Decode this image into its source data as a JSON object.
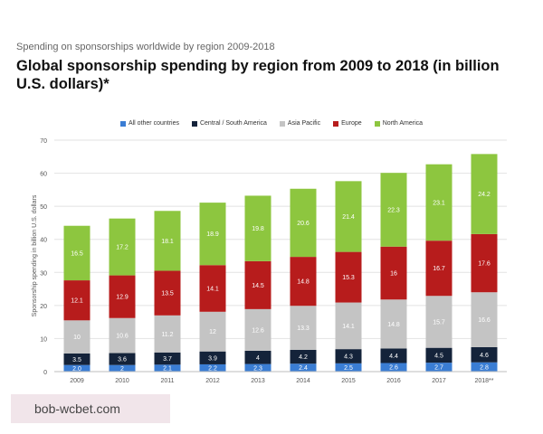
{
  "header": {
    "subtitle": "Spending on sponsorships worldwide by region 2009-2018",
    "title": "Global sponsorship spending by region from 2009 to 2018 (in billion U.S. dollars)*"
  },
  "watermark": {
    "text": "bob-wcbet.com"
  },
  "chart_data": {
    "type": "bar",
    "stacked": true,
    "title": "",
    "xlabel": "",
    "ylabel": "Sponsorship spending in billion U.S. dollars",
    "ylim": [
      0,
      70
    ],
    "yticks": [
      0,
      10,
      20,
      30,
      40,
      50,
      60,
      70
    ],
    "grid": true,
    "legend_position": "top-center",
    "categories": [
      "2009",
      "2010",
      "2011",
      "2012",
      "2013",
      "2014",
      "2015",
      "2016",
      "2017",
      "2018**"
    ],
    "series": [
      {
        "name": "All other countries",
        "color": "#3a7dd4",
        "values": [
          2.0,
          2.0,
          2.1,
          2.2,
          2.3,
          2.4,
          2.5,
          2.6,
          2.7,
          2.8
        ],
        "labels": [
          "2.0",
          "2",
          "2.1",
          "2.2",
          "2.3",
          "2.4",
          "2.5",
          "2.6",
          "2.7",
          "2.8"
        ]
      },
      {
        "name": "Central / South America",
        "color": "#14233a",
        "values": [
          3.5,
          3.6,
          3.7,
          3.9,
          4.0,
          4.2,
          4.3,
          4.4,
          4.5,
          4.6
        ],
        "labels": [
          "3.5",
          "3.6",
          "3.7",
          "3.9",
          "4",
          "4.2",
          "4.3",
          "4.4",
          "4.5",
          "4.6"
        ]
      },
      {
        "name": "Asia Pacific",
        "color": "#c4c4c4",
        "values": [
          10.0,
          10.6,
          11.2,
          12.0,
          12.6,
          13.3,
          14.1,
          14.8,
          15.7,
          16.6
        ],
        "labels": [
          "10",
          "10.6",
          "11.2",
          "12",
          "12.6",
          "13.3",
          "14.1",
          "14.8",
          "15.7",
          "16.6"
        ]
      },
      {
        "name": "Europe",
        "color": "#b71c1c",
        "values": [
          12.1,
          12.9,
          13.5,
          14.1,
          14.5,
          14.8,
          15.3,
          16.0,
          16.7,
          17.6
        ],
        "labels": [
          "12.1",
          "12.9",
          "13.5",
          "14.1",
          "14.5",
          "14.8",
          "15.3",
          "16",
          "16.7",
          "17.6"
        ]
      },
      {
        "name": "North America",
        "color": "#8dc63f",
        "values": [
          16.5,
          17.2,
          18.1,
          18.9,
          19.8,
          20.6,
          21.4,
          22.3,
          23.1,
          24.2
        ],
        "labels": [
          "16.5",
          "17.2",
          "18.1",
          "18.9",
          "19.8",
          "20.6",
          "21.4",
          "22.3",
          "23.1",
          "24.2"
        ]
      }
    ]
  }
}
